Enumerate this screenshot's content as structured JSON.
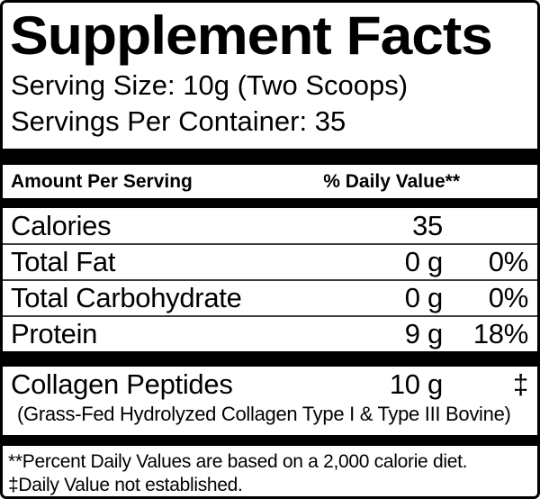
{
  "title": "Supplement Facts",
  "serving_info": {
    "serving_size": "Serving Size: 10g (Two Scoops)",
    "servings_per_container": "Servings Per Container: 35"
  },
  "table": {
    "header": {
      "amount_per_serving": "Amount Per Serving",
      "daily_value": "% Daily Value**"
    },
    "rows": [
      {
        "name": "Calories",
        "amount": "35",
        "dv": ""
      },
      {
        "name": "Total Fat",
        "amount": "0 g",
        "dv": "0%"
      },
      {
        "name": "Total Carbohydrate",
        "amount": "0 g",
        "dv": "0%"
      },
      {
        "name": "Protein",
        "amount": "9 g",
        "dv": "18%"
      }
    ],
    "supplement_row": {
      "name": "Collagen Peptides",
      "amount": "10 g",
      "dv": "‡",
      "detail": "(Grass-Fed Hydrolyzed Collagen Type I & Type III Bovine)"
    }
  },
  "footnotes": [
    "**Percent Daily Values are based on a 2,000 calorie diet.",
    "‡Daily Value not established."
  ],
  "colors": {
    "text": "#000000",
    "background": "#ffffff",
    "thick_bar": "#000000",
    "separator": "#3c3c3c"
  }
}
